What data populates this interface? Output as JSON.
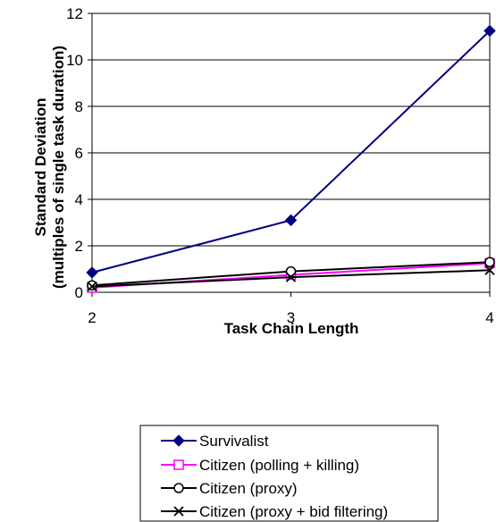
{
  "chart_data": {
    "type": "line",
    "xlabel": "Task Chain Length",
    "ylabel_line1": "Standard Deviation",
    "ylabel_line2": "(multiples of single task duration)",
    "x": [
      2,
      3,
      4
    ],
    "xlim": [
      2,
      4
    ],
    "x_ticks": [
      "2",
      "3",
      "4"
    ],
    "ylim": [
      0,
      12
    ],
    "y_ticks": [
      "0",
      "2",
      "4",
      "6",
      "8",
      "10",
      "12"
    ],
    "grid": "horizontal",
    "legend_position": "bottom",
    "series": [
      {
        "name": "Survivalist",
        "values": [
          0.85,
          3.1,
          11.25
        ],
        "color": "#000080",
        "marker": "diamond-filled"
      },
      {
        "name": "Citizen (polling + killing)",
        "values": [
          0.2,
          0.75,
          1.25
        ],
        "color": "#FF00FF",
        "marker": "square-open"
      },
      {
        "name": "Citizen (proxy)",
        "values": [
          0.3,
          0.9,
          1.3
        ],
        "color": "#000000",
        "marker": "circle-open"
      },
      {
        "name": "Citizen (proxy + bid filtering)",
        "values": [
          0.25,
          0.65,
          0.95
        ],
        "color": "#000000",
        "marker": "x"
      }
    ]
  }
}
